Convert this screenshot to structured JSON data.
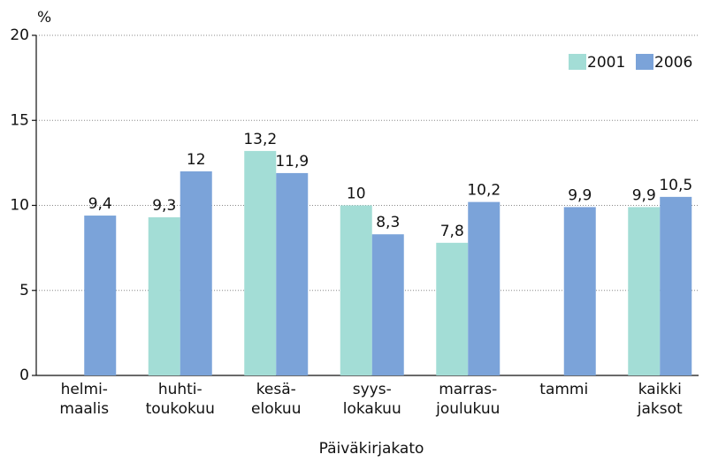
{
  "chart_data": {
    "type": "bar",
    "y_label": "%",
    "x_label": "Päiväkirjakato",
    "categories": [
      "helmi-\nmaalis",
      "huhti-\ntoukokuu",
      "kesä-\nelokuu",
      "syys-\nlokakuu",
      "marras-\njoulukuu",
      "tammi",
      "kaikki\njaksot"
    ],
    "series": [
      {
        "name": "2001",
        "color": "#a3ddd6",
        "values": [
          null,
          9.3,
          13.2,
          10,
          7.8,
          null,
          9.9
        ],
        "value_labels": [
          null,
          "9,3",
          "13,2",
          "10",
          "7,8",
          null,
          "9,9"
        ]
      },
      {
        "name": "2006",
        "color": "#7ba3d9",
        "values": [
          9.4,
          12,
          11.9,
          8.3,
          10.2,
          9.9,
          10.5
        ],
        "value_labels": [
          "9,4",
          "12",
          "11,9",
          "8,3",
          "10,2",
          "9,9",
          "10,5"
        ]
      }
    ],
    "ylim": [
      0,
      20
    ],
    "yticks": [
      0,
      5,
      10,
      15,
      20
    ],
    "grid": true,
    "legend": "top-right"
  }
}
